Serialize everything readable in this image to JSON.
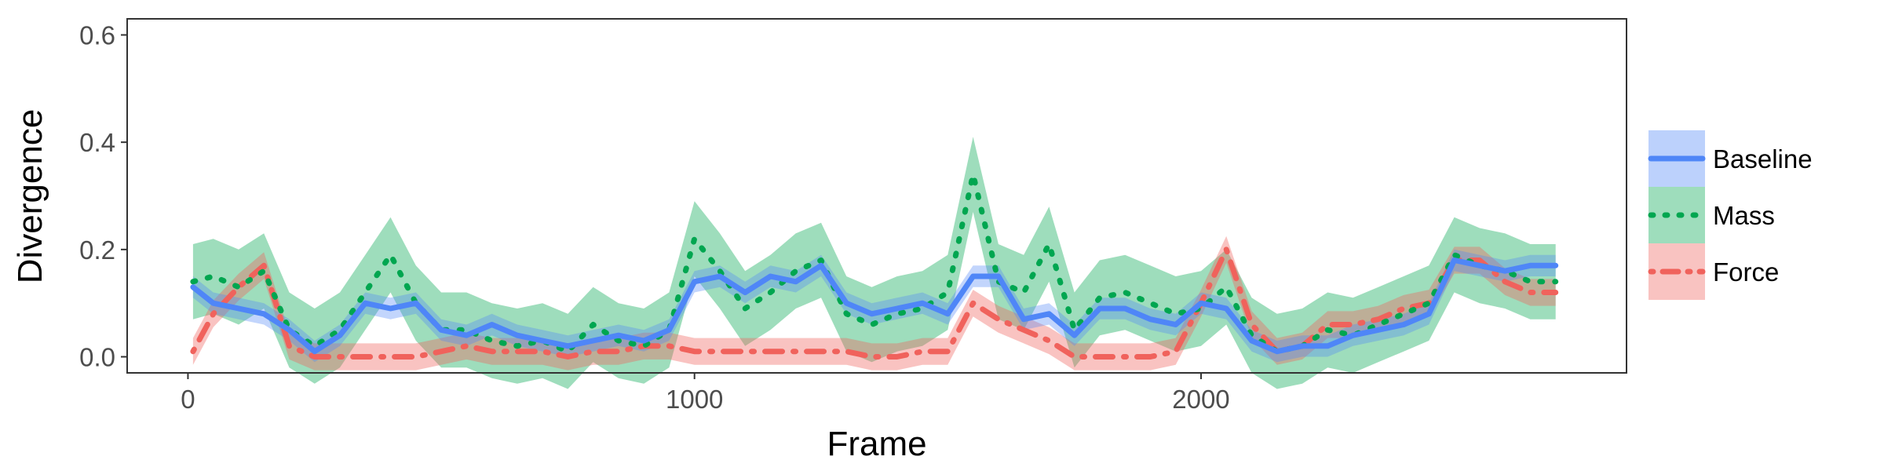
{
  "chart_data": {
    "type": "line",
    "xlabel": "Frame",
    "ylabel": "Divergence",
    "xlim": [
      -120,
      2840
    ],
    "ylim": [
      -0.03,
      0.63
    ],
    "x_ticks": [
      0,
      1000,
      2000
    ],
    "x_tick_labels": [
      "0",
      "1000",
      "2000"
    ],
    "y_ticks": [
      0.0,
      0.2,
      0.4,
      0.6
    ],
    "y_tick_labels": [
      "0.0",
      "0.2",
      "0.4",
      "0.6"
    ],
    "grid": false,
    "legend_position": "right",
    "x": [
      10,
      50,
      100,
      150,
      200,
      250,
      300,
      350,
      400,
      450,
      500,
      550,
      600,
      650,
      700,
      750,
      800,
      850,
      900,
      950,
      1000,
      1050,
      1100,
      1150,
      1200,
      1250,
      1300,
      1350,
      1400,
      1450,
      1500,
      1550,
      1600,
      1650,
      1700,
      1750,
      1800,
      1850,
      1900,
      1950,
      2000,
      2050,
      2100,
      2150,
      2200,
      2250,
      2300,
      2350,
      2400,
      2450,
      2500,
      2550,
      2600,
      2650,
      2700
    ],
    "series": [
      {
        "name": "Baseline",
        "color": "#4f86f7",
        "dash": "solid",
        "values": [
          0.13,
          0.1,
          0.09,
          0.08,
          0.05,
          0.01,
          0.04,
          0.1,
          0.09,
          0.1,
          0.05,
          0.04,
          0.06,
          0.04,
          0.03,
          0.02,
          0.03,
          0.04,
          0.03,
          0.05,
          0.14,
          0.15,
          0.12,
          0.15,
          0.14,
          0.17,
          0.1,
          0.08,
          0.09,
          0.1,
          0.08,
          0.15,
          0.15,
          0.07,
          0.08,
          0.04,
          0.09,
          0.09,
          0.07,
          0.06,
          0.1,
          0.09,
          0.03,
          0.01,
          0.02,
          0.02,
          0.04,
          0.05,
          0.06,
          0.08,
          0.18,
          0.17,
          0.16,
          0.17,
          0.17
        ],
        "band": 0.02
      },
      {
        "name": "Mass",
        "color": "#00a650",
        "dash": "dotted",
        "values": [
          0.14,
          0.15,
          0.13,
          0.16,
          0.05,
          0.02,
          0.05,
          0.12,
          0.19,
          0.1,
          0.05,
          0.05,
          0.03,
          0.02,
          0.03,
          0.01,
          0.06,
          0.03,
          0.02,
          0.05,
          0.22,
          0.16,
          0.09,
          0.12,
          0.16,
          0.18,
          0.08,
          0.06,
          0.08,
          0.09,
          0.12,
          0.34,
          0.14,
          0.12,
          0.21,
          0.05,
          0.11,
          0.12,
          0.1,
          0.08,
          0.09,
          0.13,
          0.04,
          0.01,
          0.02,
          0.05,
          0.04,
          0.06,
          0.08,
          0.1,
          0.19,
          0.17,
          0.16,
          0.14,
          0.14
        ],
        "band": 0.07
      },
      {
        "name": "Force",
        "color": "#f0625c",
        "dash": "dotdash",
        "values": [
          0.01,
          0.08,
          0.13,
          0.17,
          0.02,
          0.0,
          0.0,
          0.0,
          0.0,
          0.0,
          0.01,
          0.02,
          0.01,
          0.01,
          0.01,
          0.0,
          0.01,
          0.01,
          0.02,
          0.02,
          0.01,
          0.01,
          0.01,
          0.01,
          0.01,
          0.01,
          0.01,
          0.0,
          0.0,
          0.01,
          0.01,
          0.1,
          0.07,
          0.05,
          0.03,
          0.0,
          0.0,
          0.0,
          0.0,
          0.01,
          0.1,
          0.2,
          0.06,
          0.01,
          0.02,
          0.06,
          0.06,
          0.07,
          0.09,
          0.1,
          0.18,
          0.18,
          0.14,
          0.12,
          0.12
        ],
        "band": 0.025
      }
    ]
  }
}
